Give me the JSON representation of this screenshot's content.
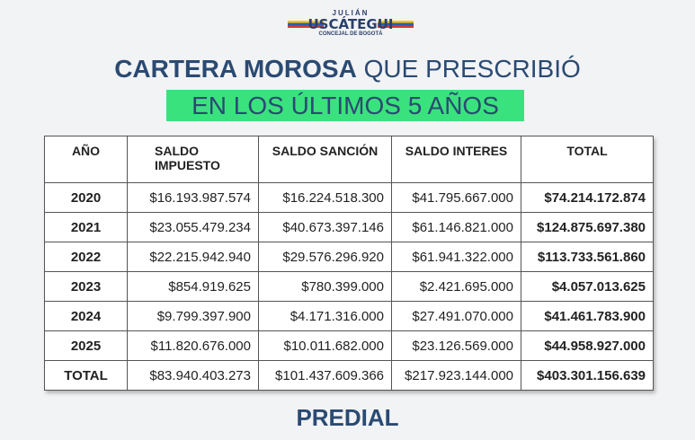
{
  "logo": {
    "first_name": "JULIÁN",
    "last_name": "USCÁTEGUI",
    "subtitle": "CONCEJAL DE BOGOTÁ"
  },
  "title": {
    "bold": "CARTERA MOROSA",
    "rest": "QUE PRESCRIBIÓ",
    "line2": "EN LOS ÚLTIMOS 5 AÑOS",
    "highlight_color": "#3ae27d",
    "text_color": "#2a4a72"
  },
  "table": {
    "headers": [
      "AÑO",
      "SALDO IMPUESTO",
      "SALDO SANCIÓN",
      "SALDO INTERES",
      "TOTAL"
    ],
    "rows": [
      [
        "2020",
        "$16.193.987.574",
        "$16.224.518.300",
        "$41.795.667.000",
        "$74.214.172.874"
      ],
      [
        "2021",
        "$23.055.479.234",
        "$40.673.397.146",
        "$61.146.821.000",
        "$124.875.697.380"
      ],
      [
        "2022",
        "$22.215.942.940",
        "$29.576.296.920",
        "$61.941.322.000",
        "$113.733.561.860"
      ],
      [
        "2023",
        "$854.919.625",
        "$780.399.000",
        "$2.421.695.000",
        "$4.057.013.625"
      ],
      [
        "2024",
        "$9.799.397.900",
        "$4.171.316.000",
        "$27.491.070.000",
        "$41.461.783.900"
      ],
      [
        "2025",
        "$11.820.676.000",
        "$10.011.682.000",
        "$23.126.569.000",
        "$44.958.927.000"
      ],
      [
        "TOTAL",
        "$83.940.403.273",
        "$101.437.609.366",
        "$217.923.144.000",
        "$403.301.156.639"
      ]
    ]
  },
  "footer": "PREDIAL"
}
